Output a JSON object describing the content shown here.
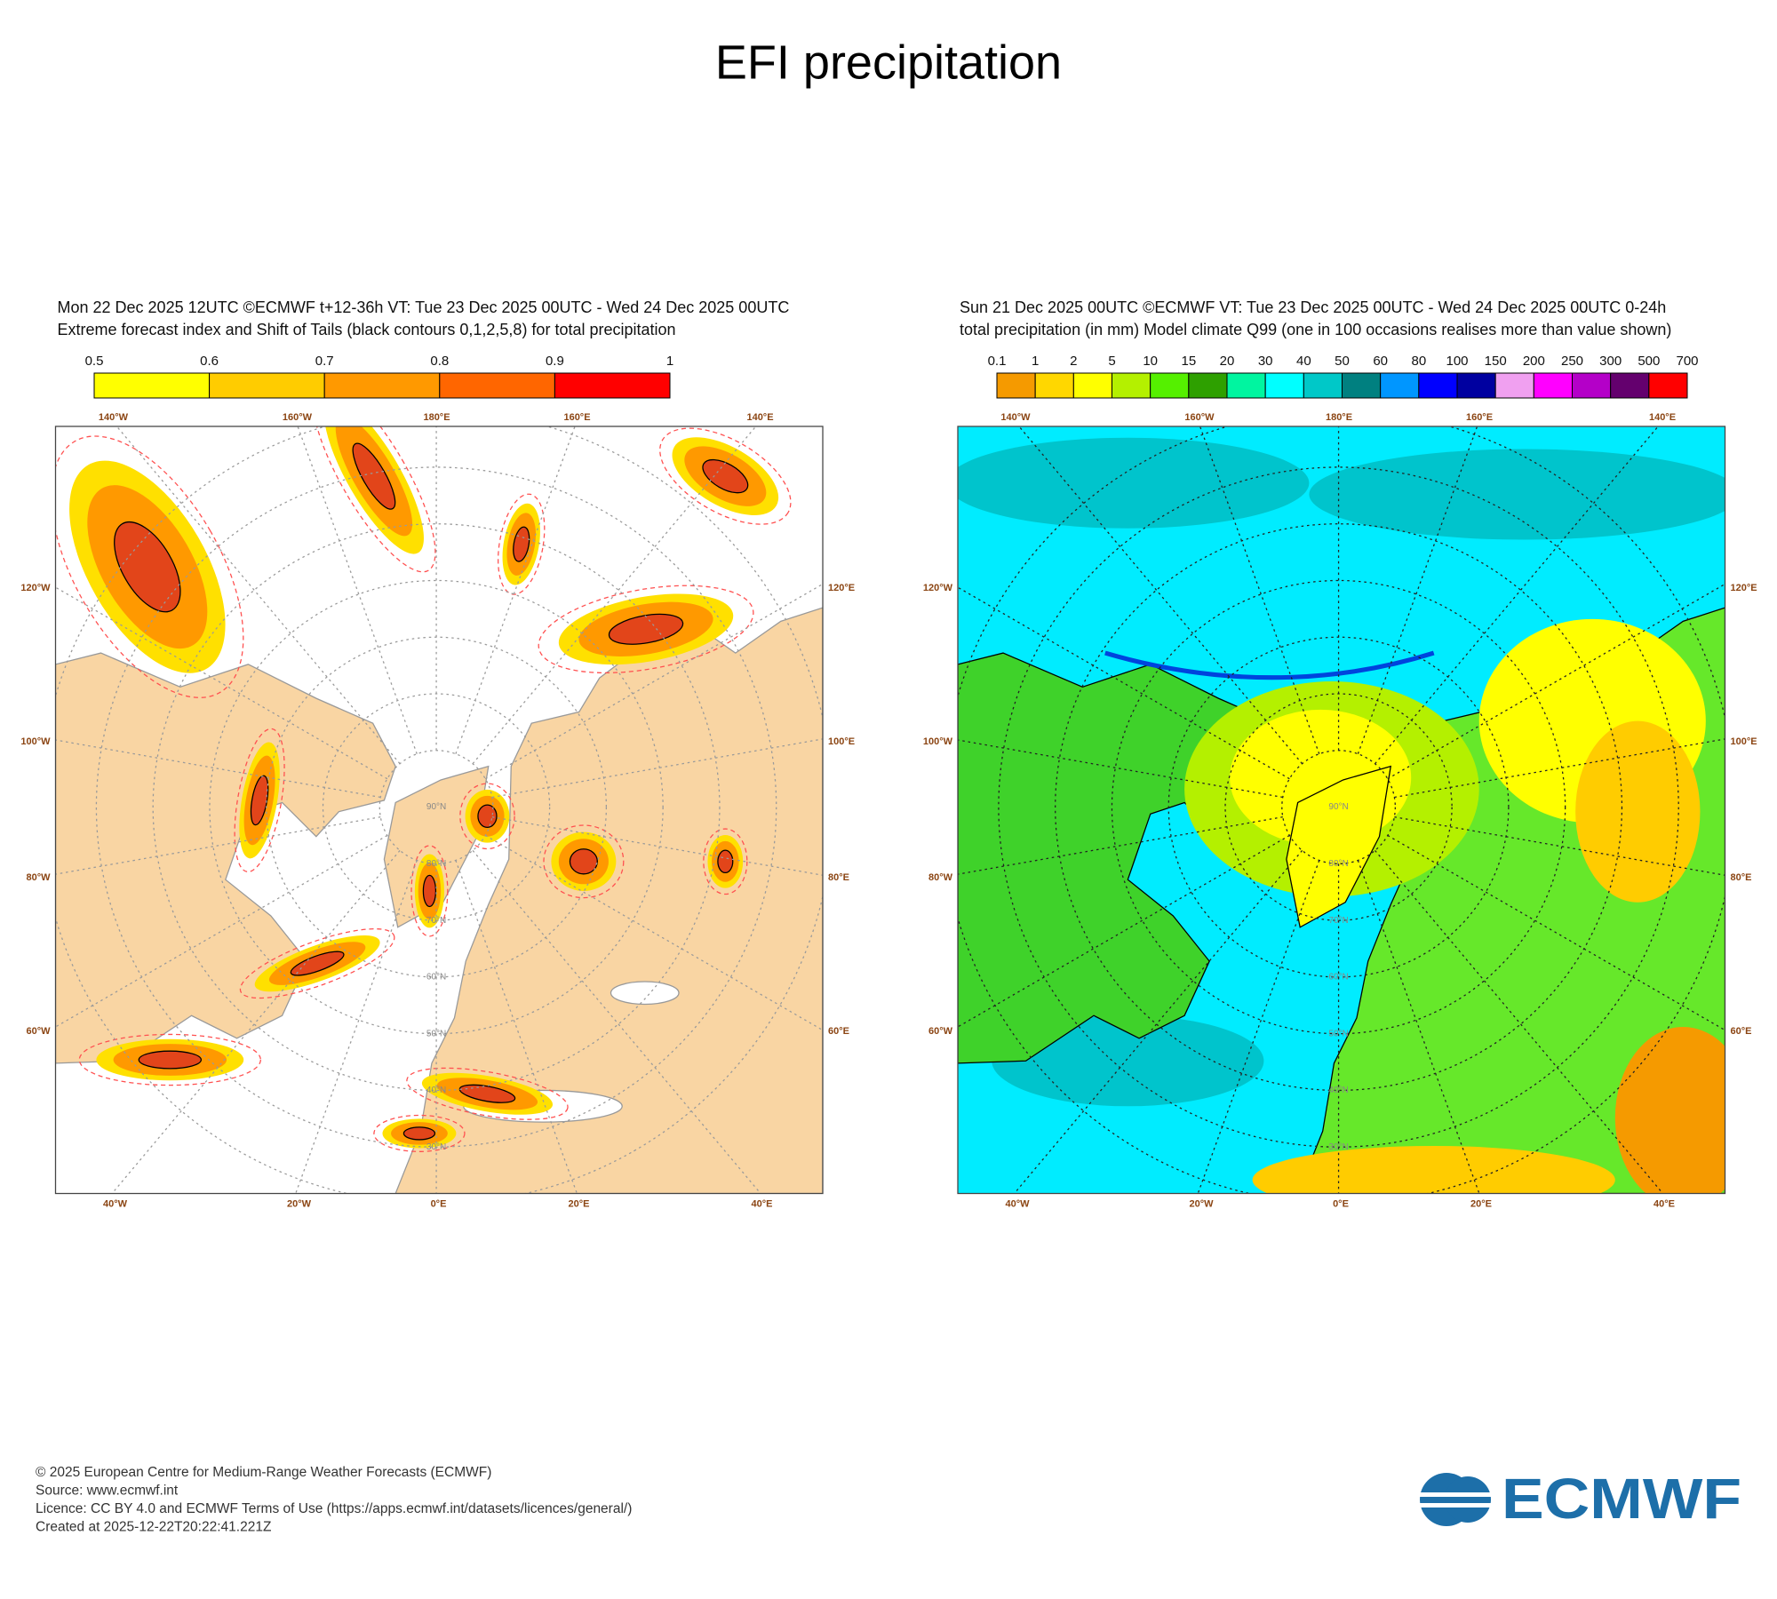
{
  "title": "EFI precipitation",
  "panels": [
    {
      "header": [
        "Mon 22 Dec 2025 12UTC ©ECMWF t+12-36h  VT: Tue 23 Dec 2025 00UTC - Wed 24 Dec 2025 00UTC",
        "Extreme forecast index and Shift of Tails (black contours 0,1,2,5,8) for total precipitation"
      ],
      "colorbar": {
        "labels": [
          0.5,
          0.6,
          0.7,
          0.8,
          0.9,
          1
        ],
        "colors": [
          "#ffff00",
          "#ffcc00",
          "#ff9900",
          "#ff6600",
          "#ff0000"
        ]
      },
      "map": {
        "top_labels": [
          "140°W",
          "160°W",
          "180°E",
          "160°E",
          "140°E"
        ],
        "left_labels": [
          "120°W",
          "100°W",
          "80°W",
          "60°W"
        ],
        "right_labels": [
          "120°E",
          "100°E",
          "80°E",
          "60°E"
        ],
        "bottom_labels": [
          "40°W",
          "20°W",
          "0°E",
          "20°E",
          "40°E"
        ],
        "lat_labels": [
          "90°N",
          "80°N",
          "70°N",
          "60°N",
          "50°N",
          "40°N",
          "30°N"
        ]
      }
    },
    {
      "header": [
        "Sun 21 Dec 2025 00UTC ©ECMWF VT: Tue 23 Dec 2025 00UTC - Wed 24 Dec 2025 00UTC   0-24h",
        "total precipitation (in mm)  Model climate Q99 (one in 100 occasions realises more than value shown)"
      ],
      "colorbar": {
        "labels": [
          0.1,
          1,
          2,
          5,
          10,
          15,
          20,
          30,
          40,
          50,
          60,
          80,
          100,
          150,
          200,
          250,
          300,
          500,
          700
        ],
        "colors": [
          "#f59a00",
          "#ffd700",
          "#ffff00",
          "#b4f000",
          "#55f000",
          "#2ea000",
          "#00f5a0",
          "#00ffff",
          "#00c8c8",
          "#008080",
          "#0096ff",
          "#0000ff",
          "#0000a0",
          "#f0a0f0",
          "#ff00ff",
          "#b400c8",
          "#64006e",
          "#ff0000"
        ]
      },
      "map": {
        "top_labels": [
          "140°W",
          "160°W",
          "180°E",
          "160°E",
          "140°E"
        ],
        "left_labels": [
          "120°W",
          "100°W",
          "80°W",
          "60°W"
        ],
        "right_labels": [
          "120°E",
          "100°E",
          "80°E",
          "60°E"
        ],
        "bottom_labels": [
          "40°W",
          "20°W",
          "0°E",
          "20°E",
          "40°E"
        ],
        "lat_labels": [
          "90°N",
          "80°N",
          "70°N",
          "60°N",
          "50°N",
          "40°N",
          "30°N"
        ]
      }
    }
  ],
  "footer": [
    "© 2025 European Centre for Medium-Range Weather Forecasts (ECMWF)",
    "Source: www.ecmwf.int",
    "Licence: CC BY 4.0 and ECMWF Terms of Use (https://apps.ecmwf.int/datasets/licences/general/)",
    "Created at 2025-12-22T20:22:41.221Z"
  ],
  "logo": "ECMWF"
}
